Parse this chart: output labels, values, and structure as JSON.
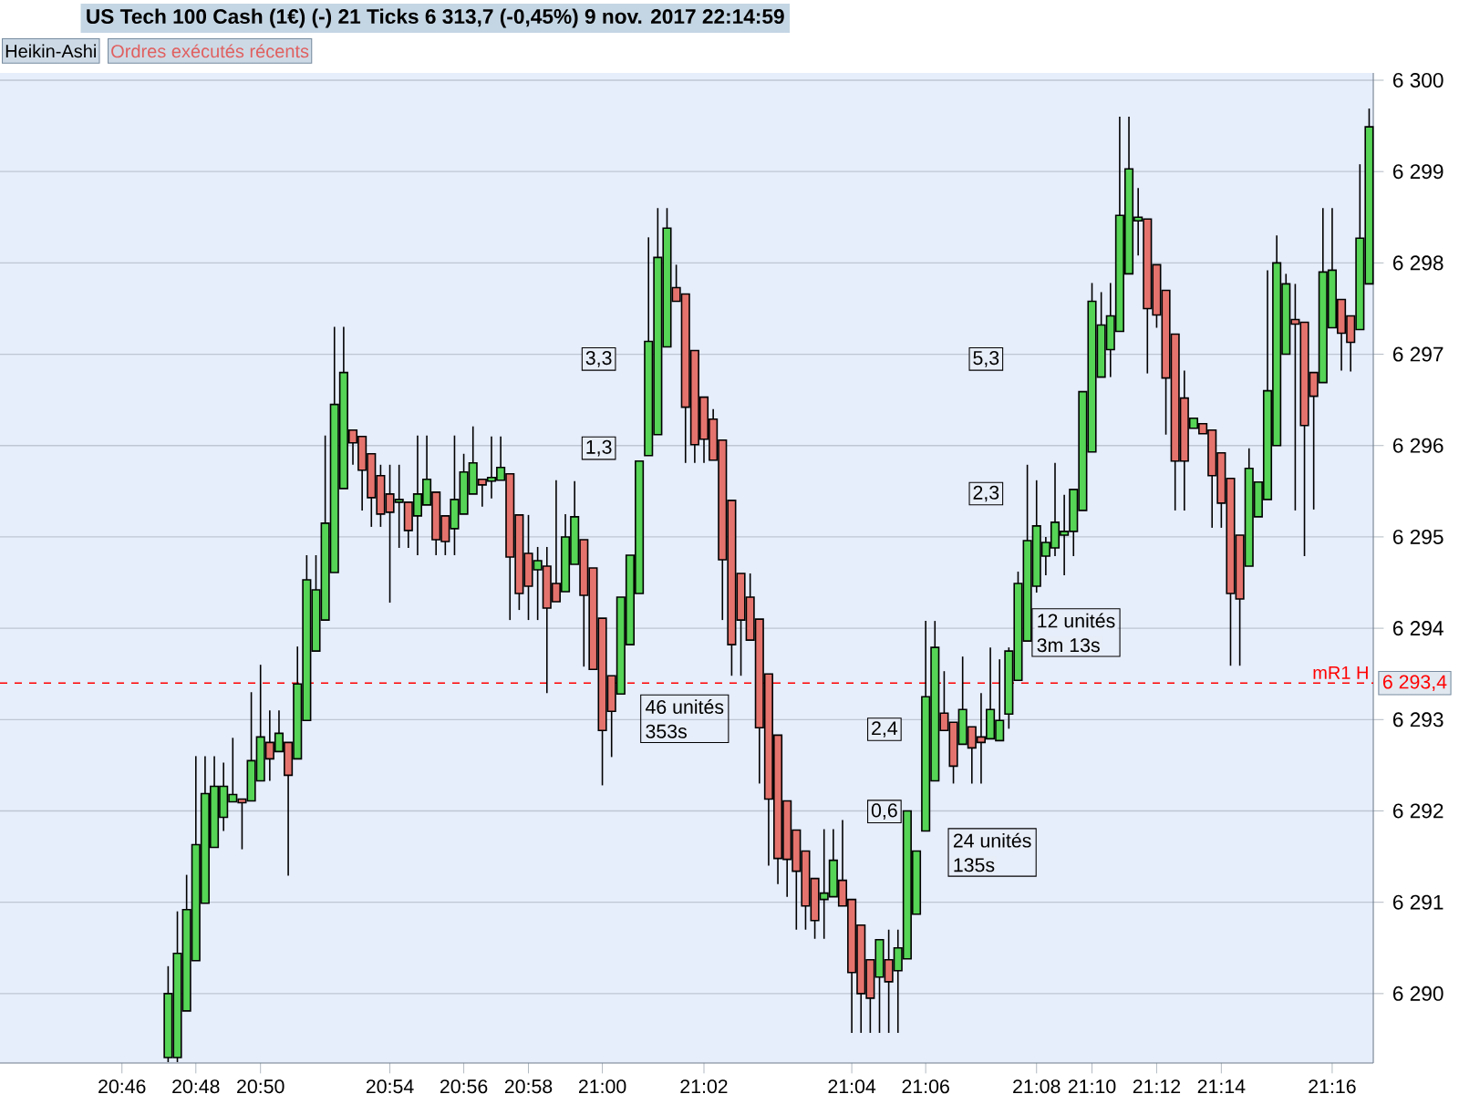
{
  "chart_data": {
    "type": "candlestick",
    "title": "US Tech 100 Cash (1€) (-)   21 Ticks   6 313,7 (-0,45%)   9 nov. 2017 22:14:59",
    "categories": [
      "20:46",
      null,
      null,
      null,
      null,
      null,
      null,
      null,
      "20:48",
      null,
      null,
      null,
      null,
      null,
      null,
      "20:50",
      null,
      null,
      null,
      null,
      null,
      null,
      null,
      null,
      null,
      null,
      null,
      null,
      null,
      "20:54",
      null,
      null,
      null,
      null,
      null,
      null,
      null,
      "20:56",
      null,
      null,
      null,
      null,
      null,
      null,
      "20:58",
      null,
      null,
      null,
      null,
      null,
      null,
      null,
      "21:00",
      null,
      null,
      null,
      null,
      null,
      null,
      null,
      null,
      null,
      null,
      "21:02",
      null,
      null,
      null,
      null,
      null,
      null,
      null,
      null,
      null,
      null,
      null,
      null,
      null,
      null,
      null,
      "21:04",
      null,
      null,
      null,
      null,
      null,
      null,
      null,
      "21:06",
      null,
      null,
      null,
      null,
      null,
      null,
      null,
      null,
      null,
      null,
      null,
      "21:08",
      null,
      null,
      null,
      null,
      null,
      "21:10",
      null,
      null,
      null,
      null,
      null,
      null,
      "21:12",
      null,
      null,
      null,
      null,
      null,
      null,
      "21:14",
      null,
      null,
      null,
      null,
      null,
      null,
      null,
      null,
      null,
      null,
      null,
      "21:16",
      null,
      null,
      null,
      null
    ],
    "ohlc": [
      null,
      null,
      null,
      null,
      null,
      [
        6289.3,
        6290.3,
        6289.25,
        6290.0
      ],
      [
        6289.3,
        6290.9,
        6289.25,
        6290.44
      ],
      [
        6289.81,
        6291.3,
        6289.81,
        6290.92
      ],
      [
        6290.36,
        6292.6,
        6290.36,
        6291.63
      ],
      [
        6290.99,
        6292.6,
        6290.99,
        6292.19
      ],
      [
        6291.6,
        6292.6,
        6291.6,
        6292.27
      ],
      [
        6291.93,
        6292.53,
        6291.78,
        6292.27
      ],
      [
        6292.1,
        6292.8,
        6292.1,
        6292.18
      ],
      [
        6292.13,
        6292.13,
        6291.58,
        6292.09
      ],
      [
        6292.11,
        6293.3,
        6292.11,
        6292.55
      ],
      [
        6292.33,
        6293.6,
        6292.33,
        6292.81
      ],
      [
        6292.75,
        6293.1,
        6292.33,
        6292.57
      ],
      [
        6292.65,
        6293.1,
        6292.65,
        6292.85
      ],
      [
        6292.75,
        6292.75,
        6291.29,
        6292.39
      ],
      [
        6292.57,
        6293.8,
        6292.57,
        6293.39
      ],
      [
        6292.99,
        6294.8,
        6292.99,
        6294.53
      ],
      [
        6293.75,
        6294.8,
        6293.75,
        6294.42
      ],
      [
        6294.09,
        6296.11,
        6294.09,
        6295.15
      ],
      [
        6294.61,
        6297.3,
        6294.61,
        6296.45
      ],
      [
        6295.53,
        6297.3,
        6295.53,
        6296.8
      ],
      [
        6296.17,
        6296.17,
        6295.79,
        6296.03
      ],
      [
        6296.1,
        6296.1,
        6295.29,
        6295.73
      ],
      [
        6295.91,
        6295.91,
        6295.11,
        6295.43
      ],
      [
        6295.67,
        6295.79,
        6295.11,
        6295.25
      ],
      [
        6295.47,
        6295.79,
        6294.28,
        6295.27
      ],
      [
        6295.38,
        6295.79,
        6294.88,
        6295.41
      ],
      [
        6295.38,
        6295.38,
        6294.88,
        6295.07
      ],
      [
        6295.23,
        6296.11,
        6294.8,
        6295.47
      ],
      [
        6295.35,
        6296.11,
        6295.35,
        6295.63
      ],
      [
        6295.49,
        6295.49,
        6294.8,
        6294.97
      ],
      [
        6295.23,
        6295.23,
        6294.8,
        6294.95
      ],
      [
        6295.09,
        6296.11,
        6294.8,
        6295.41
      ],
      [
        6295.25,
        6295.91,
        6295.25,
        6295.71
      ],
      [
        6295.47,
        6296.21,
        6295.47,
        6295.81
      ],
      [
        6295.63,
        6295.63,
        6295.33,
        6295.57
      ],
      [
        6295.61,
        6296.1,
        6295.42,
        6295.65
      ],
      [
        6295.62,
        6296.1,
        6295.62,
        6295.76
      ],
      [
        6295.69,
        6295.69,
        6294.09,
        6294.78
      ],
      [
        6295.24,
        6295.24,
        6294.2,
        6294.38
      ],
      [
        6294.82,
        6295.24,
        6294.09,
        6294.46
      ],
      [
        6294.64,
        6294.89,
        6294.09,
        6294.74
      ],
      [
        6294.68,
        6294.89,
        6293.29,
        6294.22
      ],
      [
        6294.49,
        6295.62,
        6294.29,
        6294.29
      ],
      [
        6294.4,
        6295.25,
        6294.4,
        6295.0
      ],
      [
        6294.7,
        6295.61,
        6294.7,
        6295.22
      ],
      [
        6294.97,
        6294.97,
        6293.58,
        6294.36
      ],
      [
        6294.66,
        6294.66,
        6293.55,
        6293.55
      ],
      [
        6294.11,
        6294.11,
        6292.28,
        6292.88
      ],
      [
        6293.48,
        6293.48,
        6292.59,
        6293.09
      ],
      [
        6293.28,
        6294.34,
        6293.28,
        6294.34
      ],
      [
        6293.82,
        6294.8,
        6293.82,
        6294.8
      ],
      [
        6294.38,
        6295.83,
        6294.38,
        6295.83
      ],
      [
        6295.89,
        6298.28,
        6295.89,
        6297.14
      ],
      [
        6296.12,
        6298.6,
        6296.12,
        6298.06
      ],
      [
        6297.08,
        6298.6,
        6297.08,
        6298.38
      ],
      [
        6297.73,
        6297.98,
        6297.58,
        6297.58
      ],
      [
        6297.66,
        6297.66,
        6295.81,
        6296.42
      ],
      [
        6297.04,
        6297.04,
        6295.81,
        6296.01
      ],
      [
        6296.53,
        6296.53,
        6295.81,
        6296.07
      ],
      [
        6296.29,
        6296.4,
        6295.84,
        6295.84
      ],
      [
        6296.06,
        6296.06,
        6294.09,
        6294.75
      ],
      [
        6295.4,
        6295.4,
        6293.48,
        6293.82
      ],
      [
        6294.6,
        6294.6,
        6293.48,
        6294.09
      ],
      [
        6294.34,
        6294.6,
        6293.87,
        6293.87
      ],
      [
        6294.1,
        6294.1,
        6292.3,
        6292.91
      ],
      [
        6293.5,
        6293.5,
        6291.4,
        6292.13
      ],
      [
        6292.83,
        6292.83,
        6291.2,
        6291.48
      ],
      [
        6292.11,
        6292.11,
        6291.06,
        6291.47
      ],
      [
        6291.79,
        6291.79,
        6290.7,
        6291.34
      ],
      [
        6291.56,
        6291.56,
        6290.7,
        6290.96
      ],
      [
        6291.26,
        6291.26,
        6290.6,
        6290.8
      ],
      [
        6291.03,
        6291.8,
        6290.6,
        6291.1
      ],
      [
        6291.06,
        6291.8,
        6291.06,
        6291.46
      ],
      [
        6291.24,
        6291.9,
        6290.96,
        6290.96
      ],
      [
        6291.03,
        6291.03,
        6289.57,
        6290.23
      ],
      [
        6290.75,
        6290.75,
        6289.57,
        6290.0
      ],
      [
        6290.37,
        6290.37,
        6289.57,
        6289.95
      ],
      [
        6290.18,
        6290.59,
        6289.57,
        6290.59
      ],
      [
        6290.37,
        6290.7,
        6289.57,
        6290.13
      ],
      [
        6290.25,
        6290.7,
        6289.57,
        6290.5
      ],
      [
        6290.38,
        6292.0,
        6290.38,
        6292.0
      ],
      [
        6290.87,
        6291.56,
        6290.87,
        6291.56
      ],
      [
        6291.78,
        6294.08,
        6291.78,
        6293.25
      ],
      [
        6292.33,
        6294.08,
        6292.33,
        6293.79
      ],
      [
        6293.07,
        6293.53,
        6292.88,
        6292.88
      ],
      [
        6292.97,
        6292.97,
        6292.3,
        6292.49
      ],
      [
        6292.73,
        6293.69,
        6292.73,
        6293.11
      ],
      [
        6292.92,
        6292.92,
        6292.3,
        6292.69
      ],
      [
        6292.81,
        6293.29,
        6292.3,
        6292.75
      ],
      [
        6292.79,
        6293.79,
        6292.79,
        6293.11
      ],
      [
        6292.77,
        6293.66,
        6292.77,
        6292.99
      ],
      [
        6293.06,
        6293.79,
        6292.9,
        6293.75
      ],
      [
        6293.43,
        6294.62,
        6293.43,
        6294.49
      ],
      [
        6293.86,
        6295.79,
        6293.86,
        6294.96
      ],
      [
        6294.46,
        6295.62,
        6294.39,
        6295.12
      ],
      [
        6294.79,
        6295.0,
        6294.58,
        6294.94
      ],
      [
        6294.88,
        6295.81,
        6294.79,
        6295.16
      ],
      [
        6295.02,
        6295.46,
        6294.58,
        6295.06
      ],
      [
        6295.06,
        6295.52,
        6294.79,
        6295.52
      ],
      [
        6295.29,
        6296.59,
        6295.29,
        6296.59
      ],
      [
        6295.93,
        6297.78,
        6295.93,
        6297.58
      ],
      [
        6296.75,
        6297.68,
        6296.75,
        6297.32
      ],
      [
        6297.05,
        6297.78,
        6296.75,
        6297.42
      ],
      [
        6297.25,
        6299.6,
        6297.25,
        6298.52
      ],
      [
        6297.88,
        6299.6,
        6297.88,
        6299.03
      ],
      [
        6298.46,
        6298.82,
        6298.08,
        6298.5
      ],
      [
        6298.48,
        6298.48,
        6296.79,
        6297.5
      ],
      [
        6297.98,
        6297.98,
        6297.29,
        6297.43
      ],
      [
        6297.7,
        6297.7,
        6296.12,
        6296.74
      ],
      [
        6297.22,
        6297.22,
        6295.29,
        6295.83
      ],
      [
        6296.52,
        6296.82,
        6295.29,
        6295.83
      ],
      [
        6296.19,
        6296.3,
        6296.19,
        6296.3
      ],
      [
        6296.24,
        6296.24,
        6296.13,
        6296.13
      ],
      [
        6296.17,
        6296.17,
        6295.1,
        6295.67
      ],
      [
        6295.92,
        6295.92,
        6295.1,
        6295.37
      ],
      [
        6295.64,
        6295.64,
        6293.59,
        6294.38
      ],
      [
        6295.02,
        6295.02,
        6293.59,
        6294.32
      ],
      [
        6294.68,
        6295.97,
        6294.68,
        6295.75
      ],
      [
        6295.22,
        6295.6,
        6295.22,
        6295.6
      ],
      [
        6295.41,
        6297.92,
        6295.41,
        6296.6
      ],
      [
        6296.0,
        6298.3,
        6296.0,
        6298.0
      ],
      [
        6297.0,
        6297.88,
        6297.0,
        6297.77
      ],
      [
        6297.38,
        6297.77,
        6295.29,
        6297.33
      ],
      [
        6297.35,
        6297.35,
        6294.79,
        6296.22
      ],
      [
        6296.8,
        6296.8,
        6295.3,
        6296.54
      ],
      [
        6296.69,
        6298.6,
        6296.69,
        6297.9
      ],
      [
        6297.29,
        6298.6,
        6297.29,
        6297.92
      ],
      [
        6297.6,
        6297.6,
        6296.82,
        6297.23
      ],
      [
        6297.42,
        6297.42,
        6296.81,
        6297.13
      ],
      [
        6297.27,
        6299.08,
        6297.27,
        6298.27
      ],
      [
        6297.77,
        6299.69,
        6297.77,
        6299.49
      ]
    ],
    "colors": [
      null,
      null,
      null,
      null,
      null,
      "#55d455",
      "#55d455",
      "#55d455",
      "#55d455",
      "#55d455",
      "#55d455",
      "#55d455",
      "#55d455",
      "#e5736d",
      "#55d455",
      "#55d455",
      "#e5736d",
      "#55d455",
      "#e5736d",
      "#55d455",
      "#55d455",
      "#55d455",
      "#55d455",
      "#55d455",
      "#55d455",
      "#e5736d",
      "#e5736d",
      "#e5736d",
      "#e5736d",
      "#e5736d",
      "#55d455",
      "#e5736d",
      "#55d455",
      "#55d455",
      "#e5736d",
      "#e5736d",
      "#55d455",
      "#55d455",
      "#55d455",
      "#e5736d",
      "#55d455",
      "#55d455",
      "#e5736d",
      "#e5736d",
      "#e5736d",
      "#55d455",
      "#e5736d",
      "#e5736d",
      "#55d455",
      "#55d455",
      "#e5736d",
      "#e5736d",
      "#e5736d",
      "#e5736d",
      "#55d455",
      "#55d455",
      "#55d455",
      "#55d455",
      "#55d455",
      "#55d455",
      "#e5736d",
      "#e5736d",
      "#e5736d",
      "#e5736d",
      "#e5736d",
      "#e5736d",
      "#e5736d",
      "#e5736d",
      "#e5736d",
      "#e5736d",
      "#e5736d",
      "#e5736d",
      "#e5736d",
      "#e5736d",
      "#e5736d",
      "#e5736d",
      "#55d455",
      "#55d455",
      "#e5736d",
      "#e5736d",
      "#e5736d",
      "#e5736d",
      "#55d455",
      "#e5736d",
      "#55d455",
      "#55d455",
      "#55d455",
      "#55d455",
      "#55d455",
      "#e5736d",
      "#e5736d",
      "#55d455",
      "#e5736d",
      "#e5736d",
      "#55d455",
      "#55d455",
      "#55d455",
      "#55d455",
      "#55d455",
      "#55d455",
      "#55d455",
      "#55d455",
      "#55d455",
      "#55d455",
      "#55d455",
      "#55d455",
      "#55d455",
      "#55d455",
      "#55d455",
      "#55d455",
      "#55d455",
      "#e5736d",
      "#e5736d",
      "#e5736d",
      "#e5736d",
      "#e5736d",
      "#55d455",
      "#e5736d",
      "#e5736d",
      "#e5736d",
      "#e5736d",
      "#e5736d",
      "#55d455",
      "#55d455",
      "#55d455",
      "#55d455",
      "#55d455",
      "#e5736d",
      "#e5736d",
      "#e5736d",
      "#55d455",
      "#55d455",
      "#e5736d",
      "#e5736d",
      "#55d455",
      "#55d455"
    ],
    "ylim": [
      6289.24,
      6300.08
    ],
    "yticks": [
      {
        "value": 6290,
        "label": "6 290"
      },
      {
        "value": 6291,
        "label": "6 291"
      },
      {
        "value": 6292,
        "label": "6 292"
      },
      {
        "value": 6293,
        "label": "6 293"
      },
      {
        "value": 6294,
        "label": "6 294"
      },
      {
        "value": 6295,
        "label": "6 295"
      },
      {
        "value": 6296,
        "label": "6 296"
      },
      {
        "value": 6297,
        "label": "6 297"
      },
      {
        "value": 6298,
        "label": "6 298"
      },
      {
        "value": 6299,
        "label": "6 299"
      },
      {
        "value": 6300,
        "label": "6 300"
      }
    ],
    "grid": "y",
    "ref_lines": [
      {
        "axis": "y",
        "value": 6293.4,
        "label": "mR1 H",
        "color": "#ff0000",
        "line_style": "dashed"
      }
    ],
    "annotations": [
      "Heikin-Ashi",
      "Ordres exécutés récents",
      "3,3",
      "1,3",
      "46 unités",
      "353s",
      "2,4",
      "0,6",
      "24 unités",
      "135s",
      "5,3",
      "2,3",
      "12 unités",
      "3m 13s",
      {
        "text": "6 293,4",
        "y": 6293.4
      }
    ]
  }
}
